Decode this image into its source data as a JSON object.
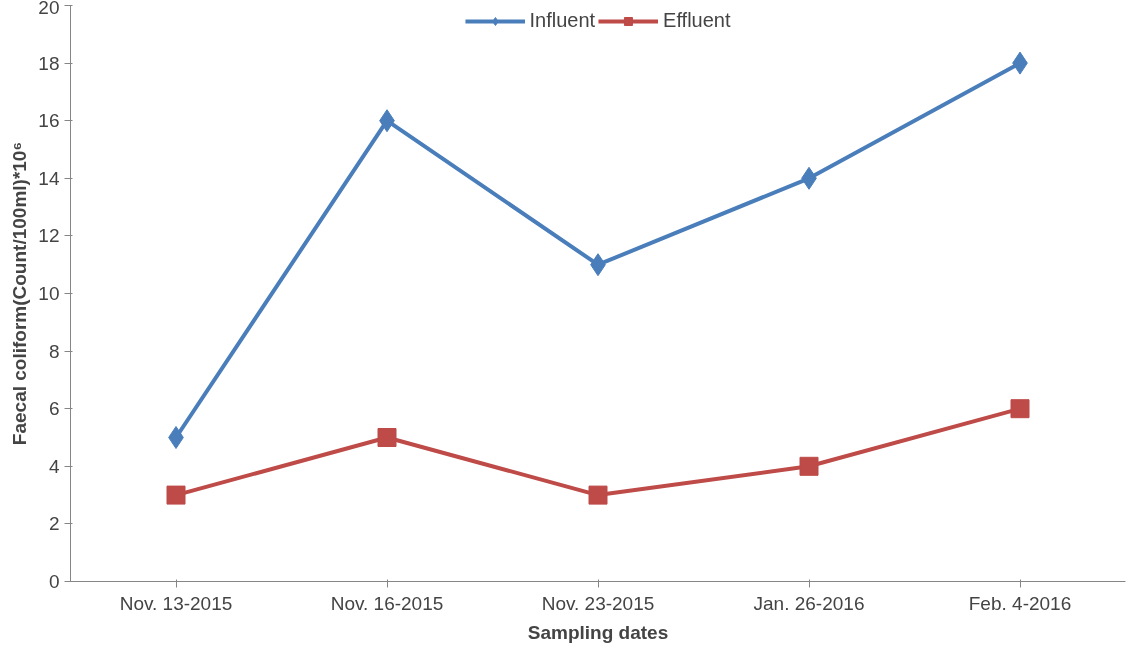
{
  "chart_data": {
    "type": "line",
    "xlabel": "Sampling dates",
    "ylabel": "Faecal coliform(Count/100ml)*10⁶",
    "categories": [
      "Nov. 13-2015",
      "Nov. 16-2015",
      "Nov. 23-2015",
      "Jan. 26-2016",
      "Feb. 4-2016"
    ],
    "series": [
      {
        "name": "Influent",
        "color": "#4a7ebb",
        "marker": "diamond",
        "values": [
          5,
          16,
          11,
          14,
          18
        ]
      },
      {
        "name": "Effluent",
        "color": "#be4b48",
        "marker": "square",
        "values": [
          3,
          5,
          3,
          4,
          6
        ]
      }
    ],
    "ylim": [
      0,
      20
    ],
    "yticks": [
      0,
      2,
      4,
      6,
      8,
      10,
      12,
      14,
      16,
      18,
      20
    ],
    "grid": false,
    "legend": "top",
    "line_style": "solid"
  }
}
